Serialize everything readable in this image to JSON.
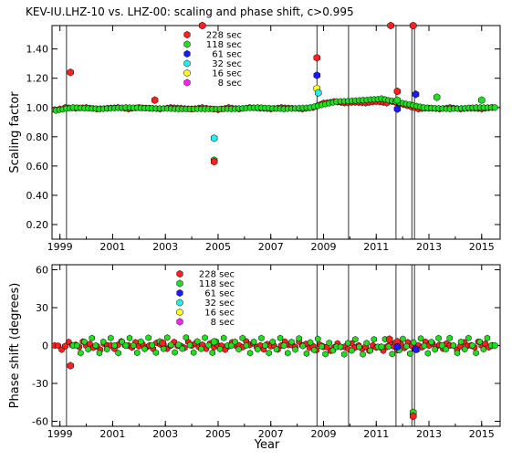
{
  "title": "KEV-IU.LHZ-10 vs. LHZ-00: scaling and phase shift, c>0.995",
  "legend": [
    {
      "label": "228 sec",
      "color": "#ff2020"
    },
    {
      "label": "118 sec",
      "color": "#22dd22"
    },
    {
      "label": "61 sec",
      "color": "#1a1aff"
    },
    {
      "label": "32 sec",
      "color": "#22eeee"
    },
    {
      "label": "16 sec",
      "color": "#ffff22"
    },
    {
      "label": "8 sec",
      "color": "#ff22ff"
    }
  ],
  "chart_data": [
    {
      "type": "scatter",
      "ylabel": "Scaling factor",
      "xlabel": "",
      "xlim": [
        1998.7,
        2015.7
      ],
      "ylim": [
        0.1,
        1.56
      ],
      "x_ticks": [
        "1999",
        "2001",
        "2003",
        "2005",
        "2007",
        "2009",
        "2011",
        "2013",
        "2015"
      ],
      "y_ticks": [
        "0.20",
        "0.40",
        "0.60",
        "0.80",
        "1.00",
        "1.20",
        "1.40"
      ],
      "vlines": [
        1999.25,
        2008.75,
        2009.95,
        2011.75,
        2012.35,
        2012.45
      ],
      "series": [
        {
          "name": "228 sec",
          "color": "#ff2020",
          "baseline": [
            [
              1998.8,
              0.985
            ],
            [
              1999.0,
              0.99
            ],
            [
              1999.2,
              1.0
            ],
            [
              1999.6,
              0.995
            ],
            [
              2000.0,
              1.0
            ],
            [
              2000.4,
              0.99
            ],
            [
              2000.8,
              0.995
            ],
            [
              2001.2,
              1.0
            ],
            [
              2001.6,
              0.99
            ],
            [
              2002.0,
              1.0
            ],
            [
              2002.4,
              0.995
            ],
            [
              2002.8,
              0.99
            ],
            [
              2003.2,
              1.0
            ],
            [
              2003.6,
              0.995
            ],
            [
              2004.0,
              0.99
            ],
            [
              2004.4,
              1.0
            ],
            [
              2005.0,
              0.985
            ],
            [
              2005.4,
              1.0
            ],
            [
              2005.8,
              0.99
            ],
            [
              2006.2,
              1.0
            ],
            [
              2006.6,
              0.995
            ],
            [
              2007.0,
              0.99
            ],
            [
              2007.4,
              1.0
            ],
            [
              2007.8,
              0.995
            ],
            [
              2008.2,
              0.99
            ],
            [
              2008.6,
              1.0
            ],
            [
              2009.0,
              1.03
            ],
            [
              2009.4,
              1.04
            ],
            [
              2009.8,
              1.03
            ],
            [
              2010.2,
              1.035
            ],
            [
              2010.6,
              1.03
            ],
            [
              2011.0,
              1.04
            ],
            [
              2011.4,
              1.03
            ],
            [
              2011.6,
              1.04
            ],
            [
              2012.6,
              0.99
            ],
            [
              2013.0,
              0.995
            ],
            [
              2013.4,
              0.99
            ],
            [
              2013.8,
              1.0
            ],
            [
              2014.2,
              0.99
            ],
            [
              2014.6,
              0.995
            ],
            [
              2015.0,
              0.99
            ],
            [
              2015.4,
              1.0
            ]
          ]
        },
        {
          "name": "118 sec",
          "color": "#22dd22",
          "baseline": [
            [
              1998.85,
              0.98
            ],
            [
              1999.5,
              1.0
            ],
            [
              2000.5,
              0.99
            ],
            [
              2001.5,
              1.0
            ],
            [
              2002.5,
              0.995
            ],
            [
              2003.5,
              0.99
            ],
            [
              2004.5,
              0.99
            ],
            [
              2005.5,
              0.99
            ],
            [
              2006.5,
              1.0
            ],
            [
              2007.5,
              0.99
            ],
            [
              2008.5,
              1.0
            ],
            [
              2009.5,
              1.04
            ],
            [
              2010.5,
              1.05
            ],
            [
              2011.2,
              1.06
            ],
            [
              2012.8,
              1.0
            ],
            [
              2013.8,
              0.99
            ],
            [
              2014.8,
              1.0
            ],
            [
              2015.5,
              1.0
            ]
          ]
        }
      ],
      "outliers": [
        {
          "x": 1999.4,
          "y": 1.24,
          "color": "#ff2020"
        },
        {
          "x": 2002.6,
          "y": 1.05,
          "color": "#ff2020"
        },
        {
          "x": 2004.4,
          "y": 1.56,
          "color": "#ff2020"
        },
        {
          "x": 2004.85,
          "y": 0.79,
          "color": "#22eeee"
        },
        {
          "x": 2004.85,
          "y": 0.64,
          "color": "#22dd22"
        },
        {
          "x": 2004.85,
          "y": 0.63,
          "color": "#ff2020"
        },
        {
          "x": 2008.75,
          "y": 1.34,
          "color": "#ff2020"
        },
        {
          "x": 2008.75,
          "y": 1.22,
          "color": "#1a1aff"
        },
        {
          "x": 2008.75,
          "y": 1.13,
          "color": "#ffff22"
        },
        {
          "x": 2008.8,
          "y": 1.1,
          "color": "#22eeee"
        },
        {
          "x": 2011.55,
          "y": 1.56,
          "color": "#ff2020"
        },
        {
          "x": 2011.8,
          "y": 1.11,
          "color": "#ff2020"
        },
        {
          "x": 2011.8,
          "y": 1.05,
          "color": "#22dd22"
        },
        {
          "x": 2011.8,
          "y": 0.99,
          "color": "#1a1aff"
        },
        {
          "x": 2012.4,
          "y": 1.56,
          "color": "#ff2020"
        },
        {
          "x": 2012.5,
          "y": 1.09,
          "color": "#1a1aff"
        },
        {
          "x": 2013.3,
          "y": 1.07,
          "color": "#22dd22"
        },
        {
          "x": 2015.0,
          "y": 1.05,
          "color": "#22dd22"
        }
      ]
    },
    {
      "type": "scatter",
      "ylabel": "Phase shift (degrees)",
      "xlabel": "Year",
      "xlim": [
        1998.7,
        2015.7
      ],
      "ylim": [
        -64,
        64
      ],
      "x_ticks": [
        "1999",
        "2001",
        "2003",
        "2005",
        "2007",
        "2009",
        "2011",
        "2013",
        "2015"
      ],
      "y_ticks": [
        "-60",
        "-30",
        "0",
        "30",
        "60"
      ],
      "vlines": [
        1999.25,
        2008.75,
        2009.95,
        2011.75,
        2012.35,
        2012.45
      ],
      "series": [
        {
          "name": "228 sec",
          "color": "#ff2020",
          "baseline": [
            [
              1998.8,
              0
            ],
            [
              1999.2,
              -0.5
            ],
            [
              1999.6,
              0.5
            ],
            [
              2000.0,
              0
            ],
            [
              2000.4,
              -0.5
            ],
            [
              2000.8,
              0
            ],
            [
              2001.2,
              0.5
            ],
            [
              2001.6,
              0
            ],
            [
              2002.0,
              -0.5
            ],
            [
              2002.4,
              0
            ],
            [
              2002.8,
              1
            ],
            [
              2003.2,
              0
            ],
            [
              2003.6,
              -0.5
            ],
            [
              2004.0,
              0
            ],
            [
              2004.4,
              0.5
            ],
            [
              2005.0,
              0
            ],
            [
              2005.4,
              -0.5
            ],
            [
              2005.8,
              0
            ],
            [
              2006.2,
              0.5
            ],
            [
              2006.6,
              0
            ],
            [
              2007.0,
              -0.5
            ],
            [
              2007.4,
              0
            ],
            [
              2007.8,
              0.5
            ],
            [
              2008.2,
              0
            ],
            [
              2008.6,
              -0.5
            ],
            [
              2009.0,
              -1
            ],
            [
              2009.4,
              -1.5
            ],
            [
              2009.8,
              -1
            ],
            [
              2010.2,
              -1.5
            ],
            [
              2010.6,
              -1
            ],
            [
              2011.0,
              -1.5
            ],
            [
              2011.4,
              -1
            ],
            [
              2012.6,
              0
            ],
            [
              2013.0,
              0
            ],
            [
              2013.4,
              0.5
            ],
            [
              2013.8,
              0
            ],
            [
              2014.2,
              -0.5
            ],
            [
              2014.6,
              0
            ],
            [
              2015.0,
              0
            ],
            [
              2015.4,
              0
            ]
          ]
        },
        {
          "name": "118 sec",
          "color": "#22dd22",
          "baseline": [
            [
              1999.5,
              0
            ],
            [
              2001.5,
              0
            ],
            [
              2003.5,
              0.5
            ],
            [
              2005.5,
              0
            ],
            [
              2007.5,
              0
            ],
            [
              2009.5,
              -1
            ],
            [
              2011.2,
              -1
            ],
            [
              2013.5,
              0
            ],
            [
              2015.5,
              0
            ]
          ]
        }
      ],
      "outliers": [
        {
          "x": 1999.4,
          "y": -16,
          "color": "#ff2020"
        },
        {
          "x": 2002.9,
          "y": 2,
          "color": "#ff2020"
        },
        {
          "x": 2004.85,
          "y": 3,
          "color": "#22dd22"
        },
        {
          "x": 2011.5,
          "y": 5,
          "color": "#ff2020"
        },
        {
          "x": 2011.8,
          "y": 3,
          "color": "#ff2020"
        },
        {
          "x": 2011.8,
          "y": -1,
          "color": "#1a1aff"
        },
        {
          "x": 2012.4,
          "y": -53,
          "color": "#22dd22"
        },
        {
          "x": 2012.4,
          "y": -56,
          "color": "#ff2020"
        },
        {
          "x": 2012.5,
          "y": -3,
          "color": "#1a1aff"
        }
      ]
    }
  ]
}
